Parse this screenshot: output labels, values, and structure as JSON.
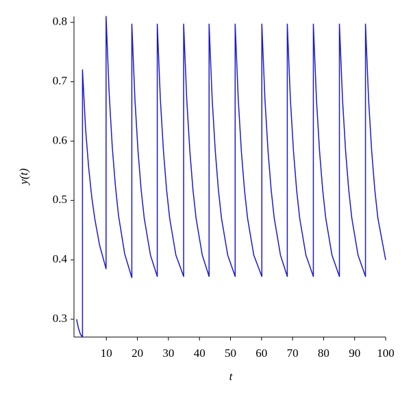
{
  "chart_data": {
    "type": "line",
    "x_label": "t",
    "y_label": "y(t)",
    "x": [
      0.4,
      1,
      1.6,
      2.3,
      2.3,
      3.3,
      4.3,
      5.3,
      6.3,
      7.8,
      9.9,
      9.9,
      10.9,
      11.9,
      12.9,
      13.9,
      15.9,
      18.2,
      18.2,
      19.2,
      20.2,
      21.2,
      22.2,
      24.2,
      26.4,
      26.4,
      27.4,
      28.4,
      29.4,
      30.4,
      32.4,
      34.9,
      34.9,
      35.9,
      36.9,
      37.9,
      38.9,
      40.9,
      43.1,
      43.1,
      44.1,
      45.1,
      46.1,
      47.1,
      49.1,
      51.5,
      51.5,
      52.5,
      53.5,
      54.5,
      55.5,
      57.5,
      60.1,
      60.1,
      61.1,
      62.1,
      63.1,
      64.1,
      66.1,
      68.3,
      68.3,
      69.3,
      70.3,
      71.3,
      72.3,
      74.3,
      76.7,
      76.7,
      77.7,
      78.7,
      79.7,
      80.7,
      82.7,
      85.1,
      85.1,
      86.1,
      87.1,
      88.1,
      89.1,
      91.1,
      93.5,
      93.5,
      94.5,
      95.5,
      96.5,
      97.5,
      100
    ],
    "values": [
      0.3,
      0.285,
      0.275,
      0.27,
      0.72,
      0.62,
      0.555,
      0.505,
      0.468,
      0.425,
      0.385,
      0.81,
      0.68,
      0.59,
      0.525,
      0.475,
      0.41,
      0.37,
      0.797,
      0.67,
      0.583,
      0.518,
      0.47,
      0.408,
      0.372,
      0.797,
      0.67,
      0.583,
      0.518,
      0.47,
      0.408,
      0.372,
      0.797,
      0.67,
      0.583,
      0.518,
      0.47,
      0.408,
      0.372,
      0.797,
      0.67,
      0.583,
      0.518,
      0.47,
      0.408,
      0.372,
      0.797,
      0.67,
      0.583,
      0.518,
      0.47,
      0.408,
      0.372,
      0.797,
      0.67,
      0.583,
      0.518,
      0.47,
      0.408,
      0.372,
      0.797,
      0.67,
      0.583,
      0.518,
      0.47,
      0.408,
      0.372,
      0.797,
      0.67,
      0.583,
      0.518,
      0.47,
      0.408,
      0.372,
      0.797,
      0.67,
      0.583,
      0.518,
      0.47,
      0.408,
      0.372,
      0.797,
      0.67,
      0.583,
      0.518,
      0.47,
      0.4
    ],
    "color": "#1a1acc",
    "xlim": [
      0,
      100
    ],
    "xticks": [
      10,
      20,
      30,
      40,
      50,
      60,
      70,
      80,
      90,
      100
    ],
    "ylim": [
      0.27,
      0.81
    ],
    "yticks": [
      0.3,
      0.4,
      0.5,
      0.6,
      0.7,
      0.8
    ]
  }
}
